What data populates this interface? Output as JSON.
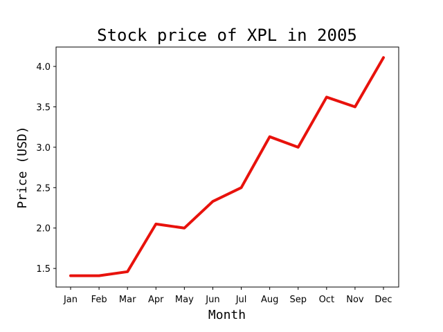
{
  "chart_data": {
    "type": "line",
    "title": "Stock price of XPL in 2005",
    "xlabel": "Month",
    "ylabel": "Price (USD)",
    "categories": [
      "Jan",
      "Feb",
      "Mar",
      "Apr",
      "May",
      "Jun",
      "Jul",
      "Aug",
      "Sep",
      "Oct",
      "Nov",
      "Dec"
    ],
    "values": [
      1.41,
      1.41,
      1.46,
      2.05,
      2.0,
      2.33,
      2.5,
      3.13,
      3.0,
      3.62,
      3.5,
      4.11
    ],
    "ylim": [
      1.27,
      4.24
    ],
    "yticks": [
      "1.5",
      "2.0",
      "2.5",
      "3.0",
      "3.5",
      "4.0"
    ],
    "line_color": "#e8120c",
    "grid": false,
    "legend": "none"
  }
}
